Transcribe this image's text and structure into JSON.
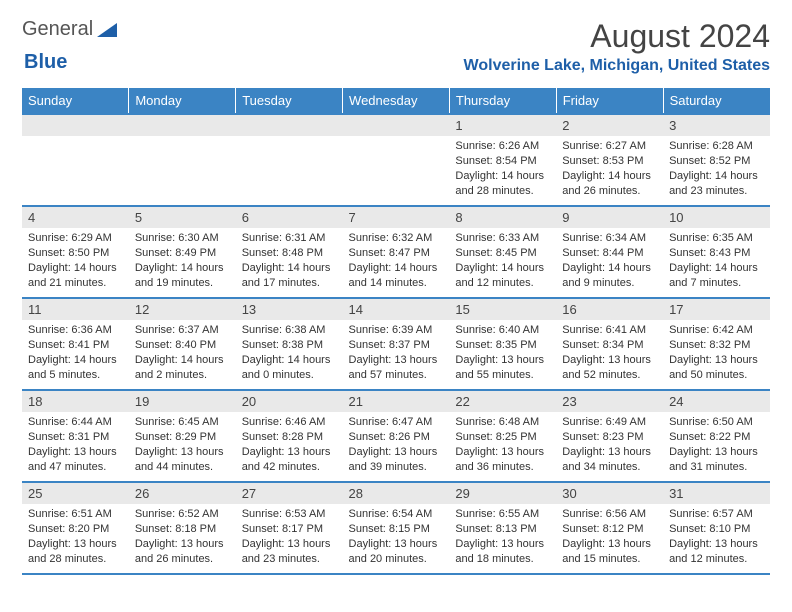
{
  "logo": {
    "text1": "General",
    "text2": "Blue",
    "accent_color": "#1e5fa8"
  },
  "title": "August 2024",
  "location": "Wolverine Lake, Michigan, United States",
  "header_bg": "#3b84c4",
  "border_color": "#3b84c4",
  "daynum_bg": "#e9e9e9",
  "weekdays": [
    "Sunday",
    "Monday",
    "Tuesday",
    "Wednesday",
    "Thursday",
    "Friday",
    "Saturday"
  ],
  "weeks": [
    [
      {
        "blank": true
      },
      {
        "blank": true
      },
      {
        "blank": true
      },
      {
        "blank": true
      },
      {
        "day": "1",
        "sunrise": "6:26 AM",
        "sunset": "8:54 PM",
        "daylight": "14 hours and 28 minutes."
      },
      {
        "day": "2",
        "sunrise": "6:27 AM",
        "sunset": "8:53 PM",
        "daylight": "14 hours and 26 minutes."
      },
      {
        "day": "3",
        "sunrise": "6:28 AM",
        "sunset": "8:52 PM",
        "daylight": "14 hours and 23 minutes."
      }
    ],
    [
      {
        "day": "4",
        "sunrise": "6:29 AM",
        "sunset": "8:50 PM",
        "daylight": "14 hours and 21 minutes."
      },
      {
        "day": "5",
        "sunrise": "6:30 AM",
        "sunset": "8:49 PM",
        "daylight": "14 hours and 19 minutes."
      },
      {
        "day": "6",
        "sunrise": "6:31 AM",
        "sunset": "8:48 PM",
        "daylight": "14 hours and 17 minutes."
      },
      {
        "day": "7",
        "sunrise": "6:32 AM",
        "sunset": "8:47 PM",
        "daylight": "14 hours and 14 minutes."
      },
      {
        "day": "8",
        "sunrise": "6:33 AM",
        "sunset": "8:45 PM",
        "daylight": "14 hours and 12 minutes."
      },
      {
        "day": "9",
        "sunrise": "6:34 AM",
        "sunset": "8:44 PM",
        "daylight": "14 hours and 9 minutes."
      },
      {
        "day": "10",
        "sunrise": "6:35 AM",
        "sunset": "8:43 PM",
        "daylight": "14 hours and 7 minutes."
      }
    ],
    [
      {
        "day": "11",
        "sunrise": "6:36 AM",
        "sunset": "8:41 PM",
        "daylight": "14 hours and 5 minutes."
      },
      {
        "day": "12",
        "sunrise": "6:37 AM",
        "sunset": "8:40 PM",
        "daylight": "14 hours and 2 minutes."
      },
      {
        "day": "13",
        "sunrise": "6:38 AM",
        "sunset": "8:38 PM",
        "daylight": "14 hours and 0 minutes."
      },
      {
        "day": "14",
        "sunrise": "6:39 AM",
        "sunset": "8:37 PM",
        "daylight": "13 hours and 57 minutes."
      },
      {
        "day": "15",
        "sunrise": "6:40 AM",
        "sunset": "8:35 PM",
        "daylight": "13 hours and 55 minutes."
      },
      {
        "day": "16",
        "sunrise": "6:41 AM",
        "sunset": "8:34 PM",
        "daylight": "13 hours and 52 minutes."
      },
      {
        "day": "17",
        "sunrise": "6:42 AM",
        "sunset": "8:32 PM",
        "daylight": "13 hours and 50 minutes."
      }
    ],
    [
      {
        "day": "18",
        "sunrise": "6:44 AM",
        "sunset": "8:31 PM",
        "daylight": "13 hours and 47 minutes."
      },
      {
        "day": "19",
        "sunrise": "6:45 AM",
        "sunset": "8:29 PM",
        "daylight": "13 hours and 44 minutes."
      },
      {
        "day": "20",
        "sunrise": "6:46 AM",
        "sunset": "8:28 PM",
        "daylight": "13 hours and 42 minutes."
      },
      {
        "day": "21",
        "sunrise": "6:47 AM",
        "sunset": "8:26 PM",
        "daylight": "13 hours and 39 minutes."
      },
      {
        "day": "22",
        "sunrise": "6:48 AM",
        "sunset": "8:25 PM",
        "daylight": "13 hours and 36 minutes."
      },
      {
        "day": "23",
        "sunrise": "6:49 AM",
        "sunset": "8:23 PM",
        "daylight": "13 hours and 34 minutes."
      },
      {
        "day": "24",
        "sunrise": "6:50 AM",
        "sunset": "8:22 PM",
        "daylight": "13 hours and 31 minutes."
      }
    ],
    [
      {
        "day": "25",
        "sunrise": "6:51 AM",
        "sunset": "8:20 PM",
        "daylight": "13 hours and 28 minutes."
      },
      {
        "day": "26",
        "sunrise": "6:52 AM",
        "sunset": "8:18 PM",
        "daylight": "13 hours and 26 minutes."
      },
      {
        "day": "27",
        "sunrise": "6:53 AM",
        "sunset": "8:17 PM",
        "daylight": "13 hours and 23 minutes."
      },
      {
        "day": "28",
        "sunrise": "6:54 AM",
        "sunset": "8:15 PM",
        "daylight": "13 hours and 20 minutes."
      },
      {
        "day": "29",
        "sunrise": "6:55 AM",
        "sunset": "8:13 PM",
        "daylight": "13 hours and 18 minutes."
      },
      {
        "day": "30",
        "sunrise": "6:56 AM",
        "sunset": "8:12 PM",
        "daylight": "13 hours and 15 minutes."
      },
      {
        "day": "31",
        "sunrise": "6:57 AM",
        "sunset": "8:10 PM",
        "daylight": "13 hours and 12 minutes."
      }
    ]
  ],
  "labels": {
    "sunrise": "Sunrise:",
    "sunset": "Sunset:",
    "daylight": "Daylight:"
  }
}
